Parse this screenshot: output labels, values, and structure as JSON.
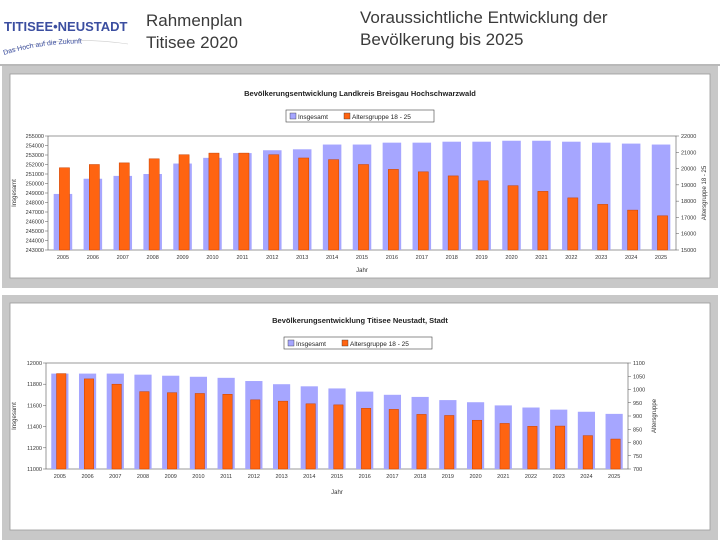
{
  "header": {
    "logo_name": "TITISEE•NEUSTADT",
    "logo_tagline": "Das Hoch auf die Zukunft",
    "plan_line1": "Rahmenplan",
    "plan_line2": "Titisee 2020",
    "title_line1": "Voraussichtliche Entwicklung der",
    "title_line2": "Bevölkerung bis 2025"
  },
  "colors": {
    "total": "#a6a6ff",
    "age": "#ff6411",
    "age_edge": "#c84000",
    "chart_bg": "#ffffff",
    "panel_bg": "#c8c8c8"
  },
  "chart_data": [
    {
      "type": "bar",
      "title": "Bevölkerungsentwicklung Landkreis Breisgau Hochschwarzwald",
      "xlabel": "Jahr",
      "ylabel": "Insgesamt",
      "y2label": "Altersgruppe 18 - 25",
      "categories": [
        "2005",
        "2006",
        "2007",
        "2008",
        "2009",
        "2010",
        "2011",
        "2012",
        "2013",
        "2014",
        "2015",
        "2016",
        "2017",
        "2018",
        "2019",
        "2020",
        "2021",
        "2022",
        "2023",
        "2024",
        "2025"
      ],
      "ylim": [
        243000,
        255000
      ],
      "yticks": [
        "243000",
        "244000",
        "245000",
        "246000",
        "247000",
        "248000",
        "249000",
        "250000",
        "251000",
        "252000",
        "253000",
        "254000",
        "255000"
      ],
      "y2lim": [
        15000,
        22000
      ],
      "y2ticks": [
        "15000",
        "16000",
        "17000",
        "18000",
        "19000",
        "20000",
        "21000",
        "22000"
      ],
      "legend": [
        "Insgesamt",
        "Altersgruppe 18 - 25"
      ],
      "series": [
        {
          "name": "Insgesamt",
          "axis": "left",
          "values": [
            248900,
            250500,
            250800,
            251000,
            252100,
            252700,
            253200,
            253500,
            253600,
            254100,
            254100,
            254300,
            254300,
            254400,
            254400,
            254500,
            254500,
            254400,
            254300,
            254200,
            254100
          ]
        },
        {
          "name": "Altersgruppe 18 - 25",
          "axis": "right",
          "values": [
            20050,
            20250,
            20350,
            20600,
            20850,
            20950,
            20950,
            20850,
            20650,
            20550,
            20250,
            19950,
            19800,
            19550,
            19250,
            18950,
            18600,
            18200,
            17800,
            17450,
            17100
          ]
        }
      ]
    },
    {
      "type": "bar",
      "title": "Bevölkerungsentwicklung Titisee Neustadt, Stadt",
      "xlabel": "Jahr",
      "ylabel": "Insgesamt",
      "y2label": "Altersgruppe",
      "categories": [
        "2005",
        "2006",
        "2007",
        "2008",
        "2009",
        "2010",
        "2011",
        "2012",
        "2013",
        "2014",
        "2015",
        "2016",
        "2017",
        "2018",
        "2019",
        "2020",
        "2021",
        "2022",
        "2023",
        "2024",
        "2025"
      ],
      "ylim": [
        11000,
        12000
      ],
      "yticks": [
        "11000",
        "11200",
        "11400",
        "11600",
        "11800",
        "12000"
      ],
      "y2lim": [
        700,
        1100
      ],
      "y2ticks": [
        "700",
        "750",
        "800",
        "850",
        "900",
        "950",
        "1000",
        "1050",
        "1100"
      ],
      "legend": [
        "Insgesamt",
        "Altersgruppe 18 - 25"
      ],
      "series": [
        {
          "name": "Insgesamt",
          "axis": "left",
          "values": [
            11900,
            11900,
            11900,
            11890,
            11880,
            11870,
            11860,
            11830,
            11800,
            11780,
            11760,
            11730,
            11700,
            11680,
            11650,
            11630,
            11600,
            11580,
            11560,
            11540,
            11520
          ]
        },
        {
          "name": "Altersgruppe",
          "axis": "right",
          "values": [
            1060,
            1040,
            1020,
            992,
            988,
            985,
            982,
            961,
            956,
            946,
            942,
            929,
            925,
            906,
            902,
            884,
            872,
            861,
            862,
            826,
            813
          ]
        }
      ]
    }
  ]
}
